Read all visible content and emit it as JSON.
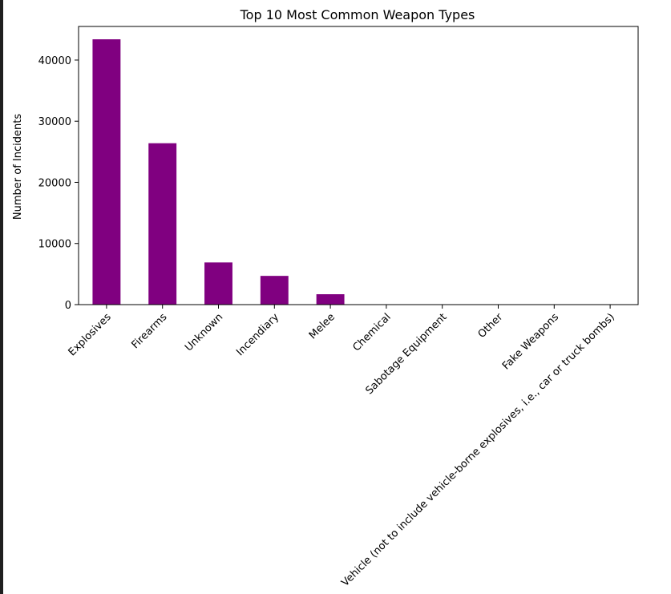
{
  "chart_data": {
    "type": "bar",
    "title": "Top 10 Most Common Weapon Types",
    "xlabel": "",
    "ylabel": "Number of Incidents",
    "ylim": [
      0,
      45500
    ],
    "yticks": [
      0,
      10000,
      20000,
      30000,
      40000
    ],
    "grid": false,
    "bar_color": "#800080",
    "categories": [
      "Explosives",
      "Firearms",
      "Unknown",
      "Incendiary",
      "Melee",
      "Chemical",
      "Sabotage Equipment",
      "Other",
      "Fake Weapons",
      "Vehicle (not to include vehicle-borne explosives, i.e., car or truck bombs)"
    ],
    "values": [
      43400,
      26400,
      6900,
      4700,
      1700,
      40,
      30,
      20,
      15,
      10
    ]
  }
}
